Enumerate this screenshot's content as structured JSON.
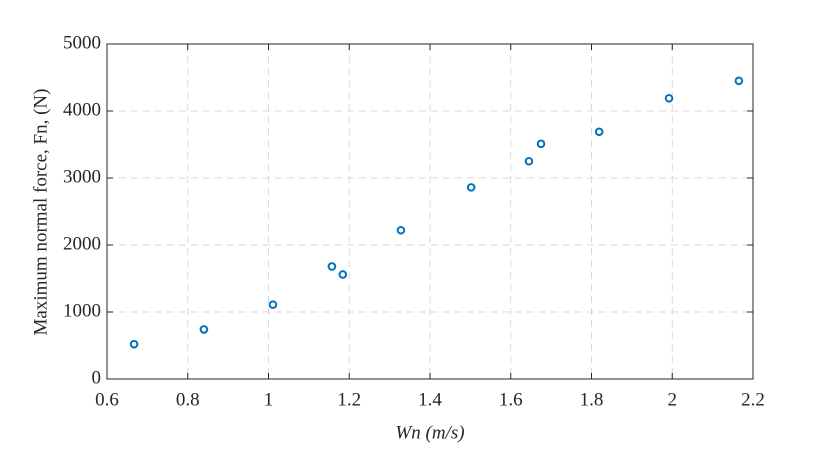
{
  "chart_data": {
    "type": "scatter",
    "xlabel": "Wn (m/s)",
    "ylabel": "Maximum normal force, Fn, (N)",
    "series": [
      {
        "color": "#0072bd",
        "x": [
          0.667,
          0.84,
          1.011,
          1.157,
          1.184,
          1.328,
          1.502,
          1.645,
          1.675,
          1.819,
          1.992,
          2.165
        ],
        "values": [
          520,
          740,
          1110,
          1680,
          1560,
          2220,
          2860,
          3250,
          3510,
          3690,
          4190,
          4450
        ]
      }
    ],
    "xlim": [
      0.6,
      2.2
    ],
    "xticks": [
      0.6,
      0.8,
      1,
      1.2,
      1.4,
      1.6,
      1.8,
      2,
      2.2
    ],
    "ylim": [
      0,
      5000
    ],
    "yticks": [
      0,
      1000,
      2000,
      3000,
      4000,
      5000
    ],
    "grid": true
  }
}
